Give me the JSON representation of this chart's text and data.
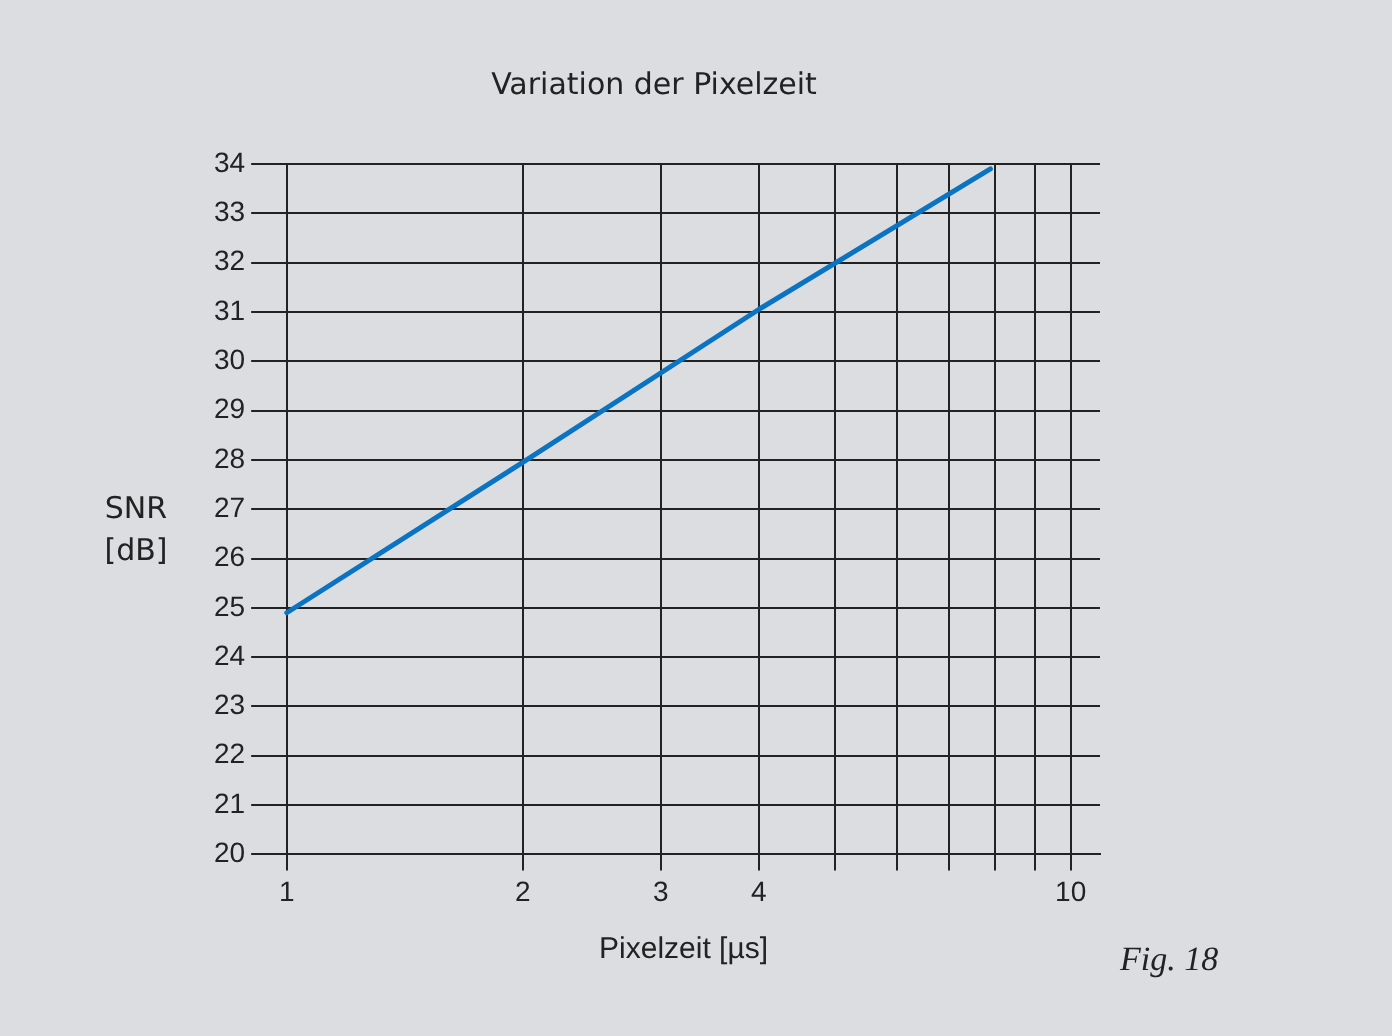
{
  "chart_data": {
    "type": "line",
    "title": "Variation der Pixelzeit",
    "xlabel": "Pixelzeit [µs]",
    "ylabel": "SNR [dB]",
    "annotations": [
      "Fig. 18"
    ],
    "log": "x",
    "grid": true,
    "legend": false,
    "marker": "none",
    "line_style": "solid",
    "xlim": [
      0.944,
      10.9
    ],
    "xticks": [
      1,
      2,
      3,
      4,
      {
        "value": 5,
        "label": null
      },
      {
        "value": 6,
        "label": null
      },
      {
        "value": 7,
        "label": null
      },
      {
        "value": 8,
        "label": null
      },
      {
        "value": 9,
        "label": null
      },
      10
    ],
    "ylim": [
      20,
      34
    ],
    "yticks": [
      20,
      21,
      22,
      23,
      24,
      25,
      26,
      27,
      28,
      29,
      30,
      31,
      32,
      33,
      34
    ],
    "series": [
      {
        "color": "#0a74c2",
        "x": [
          1,
          2,
          4,
          7.9
        ],
        "values": [
          24.9,
          27.95,
          31.05,
          33.9
        ]
      }
    ]
  }
}
